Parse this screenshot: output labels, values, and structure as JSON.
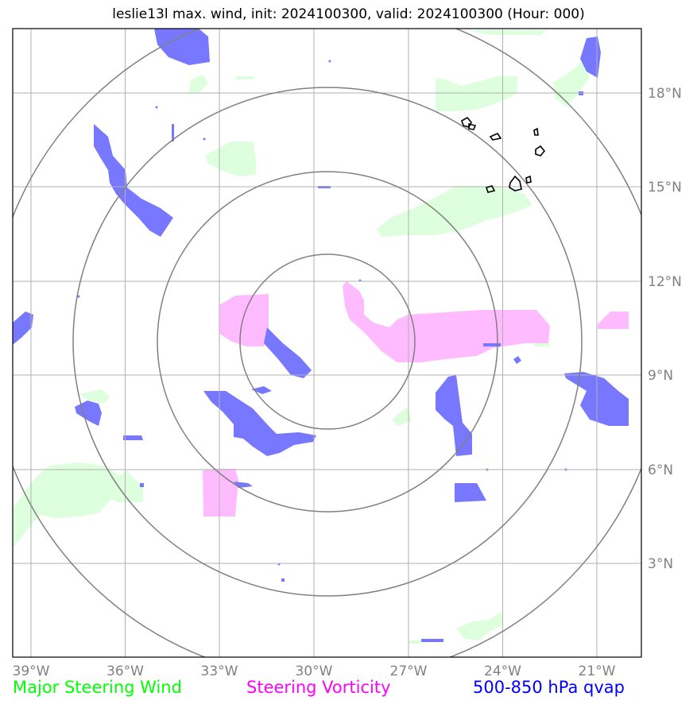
{
  "title": "leslie13l max. wind, init: 2024100300, valid: 2024100300 (Hour: 000)",
  "x_ticks": [
    "39°W",
    "36°W",
    "33°W",
    "30°W",
    "27°W",
    "24°W",
    "21°W"
  ],
  "y_ticks": [
    "18°N",
    "15°N",
    "12°N",
    "9°N",
    "6°N",
    "3°N"
  ],
  "legend": [
    {
      "label": "Major Steering Wind",
      "color": "#00ff00"
    },
    {
      "label": "Steering Vorticity",
      "color": "#ff00ff"
    },
    {
      "label": "500-850 hPa qvap",
      "color": "#0000ff"
    }
  ],
  "colors": {
    "wind_fill": "#ddffdd",
    "vorticity_fill": "#ffbbff",
    "qvap_fill": "#7777ff",
    "range_rings": "#808080",
    "grid": "#b0b0b0",
    "coastline": "#000000",
    "tick_labels": "#808080"
  },
  "map": {
    "lon_range": [
      -39.6,
      -19.6
    ],
    "lat_range": [
      0.3,
      20.3
    ],
    "range_ring_count": 4,
    "grid": true,
    "center_marker": "storm center near 10°N 29.6°W"
  }
}
